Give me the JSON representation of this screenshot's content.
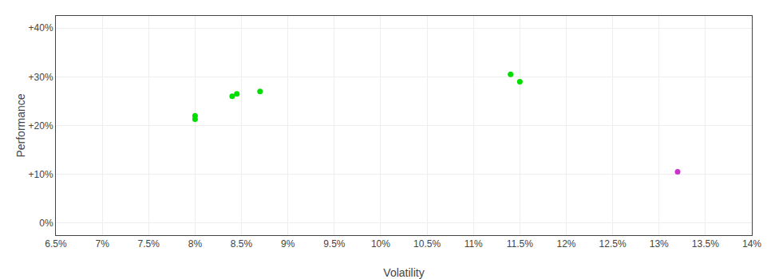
{
  "chart_data": {
    "type": "scatter",
    "x_label": "Volatility",
    "y_label": "Performance",
    "series": [
      {
        "color": "#00dd00",
        "marker": "circle",
        "x": [
          0.08,
          0.08,
          0.084,
          0.0845,
          0.087,
          0.114,
          0.115
        ],
        "values": [
          0.213,
          0.22,
          0.26,
          0.265,
          0.27,
          0.305,
          0.29
        ]
      },
      {
        "color": "#cc33cc",
        "marker": "circle",
        "x": [
          0.132
        ],
        "values": [
          0.105
        ]
      }
    ],
    "xlim": [
      0.065,
      0.14
    ],
    "ylim": [
      -0.025,
      0.425
    ],
    "xticks": [
      {
        "value": 0.065,
        "label": "6.5%"
      },
      {
        "value": 0.07,
        "label": "7%"
      },
      {
        "value": 0.075,
        "label": "7.5%"
      },
      {
        "value": 0.08,
        "label": "8%"
      },
      {
        "value": 0.085,
        "label": "8.5%"
      },
      {
        "value": 0.09,
        "label": "9%"
      },
      {
        "value": 0.095,
        "label": "9.5%"
      },
      {
        "value": 0.1,
        "label": "10%"
      },
      {
        "value": 0.105,
        "label": "10.5%"
      },
      {
        "value": 0.11,
        "label": "11%"
      },
      {
        "value": 0.115,
        "label": "11.5%"
      },
      {
        "value": 0.12,
        "label": "12%"
      },
      {
        "value": 0.125,
        "label": "12.5%"
      },
      {
        "value": 0.13,
        "label": "13%"
      },
      {
        "value": 0.135,
        "label": "13.5%"
      },
      {
        "value": 0.14,
        "label": "14%"
      }
    ],
    "yticks": [
      {
        "value": 0.0,
        "label": "0%"
      },
      {
        "value": 0.1,
        "label": "+10%"
      },
      {
        "value": 0.2,
        "label": "+20%"
      },
      {
        "value": 0.3,
        "label": "+30%"
      },
      {
        "value": 0.4,
        "label": "+40%"
      }
    ],
    "grid": true
  }
}
